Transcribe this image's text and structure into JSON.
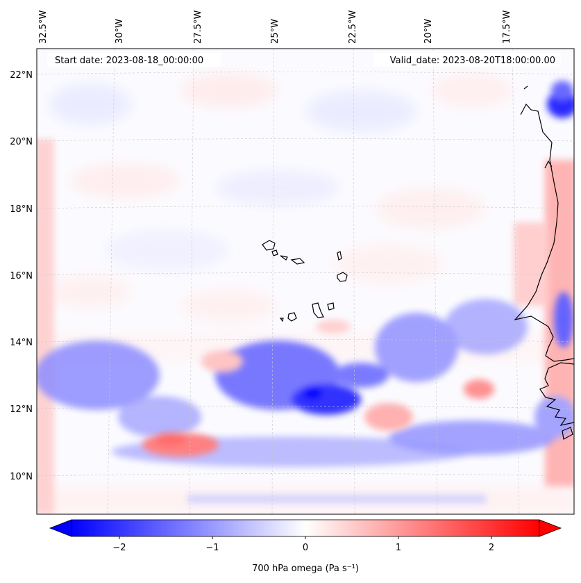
{
  "map": {
    "annotations": {
      "start_date": "Start date: 2023-08-18_00:00:00",
      "valid_date": "Valid_date: 2023-08-20T18:00:00.00"
    },
    "lon_labels": [
      "32.5°W",
      "30°W",
      "27.5°W",
      "25°W",
      "22.5°W",
      "20°W",
      "17.5°W"
    ],
    "lat_labels": [
      "22°N",
      "20°N",
      "18°N",
      "16°N",
      "14°N",
      "12°N",
      "10°N"
    ],
    "colorbar": {
      "label": "700 hPa omega (Pa s⁻¹)",
      "ticks": [
        "−2",
        "−1",
        "0",
        "1",
        "2"
      ],
      "range": [
        -2.5,
        2.5
      ],
      "colormap": "bwr",
      "color_low": "#0000ff",
      "color_mid": "#ffffff",
      "color_high": "#ff0000"
    },
    "coastline_color": "#000000"
  }
}
